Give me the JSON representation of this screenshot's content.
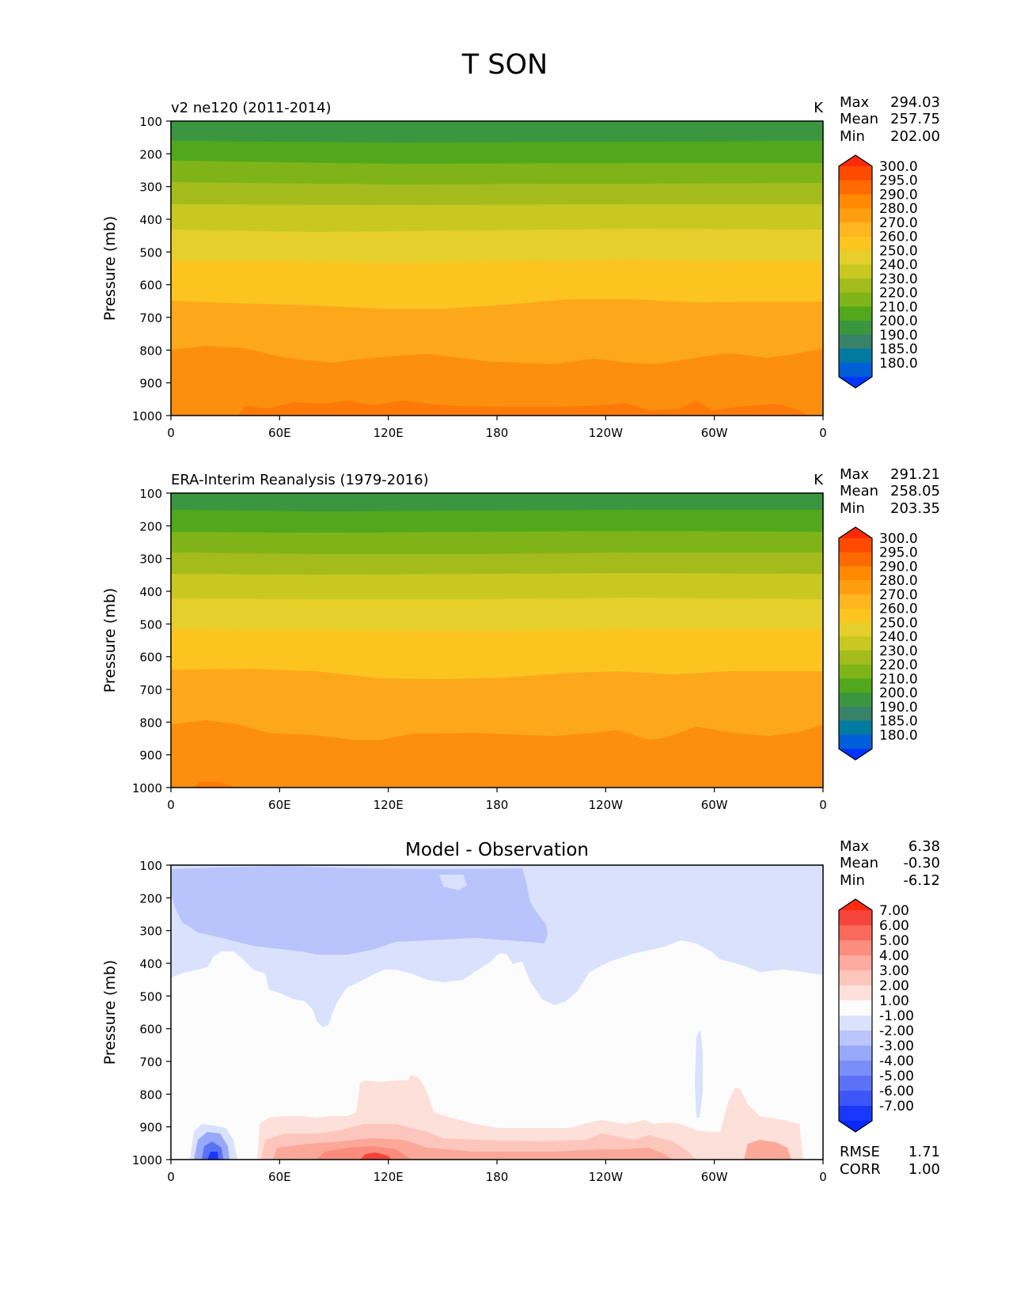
{
  "figure_title": "T SON",
  "chart_data": [
    {
      "type": "heatmap",
      "panel": "model",
      "title": "v2 ne120 (2011-2014)",
      "units": "K",
      "xlabel": "",
      "ylabel": "Pressure (mb)",
      "xticks": [
        "0",
        "60E",
        "120E",
        "180",
        "120W",
        "60W",
        "0"
      ],
      "yticks": [
        "100",
        "200",
        "300",
        "400",
        "500",
        "600",
        "700",
        "800",
        "900",
        "1000"
      ],
      "ylim": [
        1000,
        100
      ],
      "stats": {
        "max_label": "Max",
        "max": "294.03",
        "mean_label": "Mean",
        "mean": "257.75",
        "min_label": "Min",
        "min": "202.00"
      },
      "colorbar": {
        "labels": [
          "300.0",
          "295.0",
          "290.0",
          "280.0",
          "270.0",
          "260.0",
          "250.0",
          "240.0",
          "230.0",
          "220.0",
          "210.0",
          "200.0",
          "190.0",
          "185.0",
          "180.0"
        ],
        "colors": [
          "#ff2a0a",
          "#ff4a00",
          "#ff6a00",
          "#ff8a00",
          "#ff9f10",
          "#fdb520",
          "#fcc41f",
          "#e6cf2a",
          "#c8c820",
          "#a3bc1c",
          "#7fb418",
          "#52a81c",
          "#3b9640",
          "#378268",
          "#007ba0",
          "#005ed6",
          "#0035ff"
        ]
      },
      "levels": [
        {
          "p_top": 100,
          "p_bot": 150,
          "value": 205,
          "color": "#3b9640"
        },
        {
          "p_top": 150,
          "p_bot": 210,
          "value": 215,
          "color": "#52a81c"
        },
        {
          "p_top": 210,
          "p_bot": 270,
          "value": 225,
          "color": "#7fb418"
        },
        {
          "p_top": 270,
          "p_bot": 340,
          "value": 235,
          "color": "#a3bc1c"
        },
        {
          "p_top": 340,
          "p_bot": 420,
          "value": 245,
          "color": "#c8c820"
        },
        {
          "p_top": 420,
          "p_bot": 520,
          "value": 255,
          "color": "#e6cf2a"
        },
        {
          "p_top": 520,
          "p_bot": 650,
          "value": 265,
          "color": "#fcc41f"
        },
        {
          "p_top": 650,
          "p_bot": 810,
          "value": 275,
          "color": "#fda81a"
        },
        {
          "p_top": 810,
          "p_bot": 1000,
          "value": 285,
          "color": "#fd8f0e"
        }
      ]
    },
    {
      "type": "heatmap",
      "panel": "observation",
      "title": "ERA-Interim Reanalysis (1979-2016)",
      "units": "K",
      "xlabel": "",
      "ylabel": "Pressure (mb)",
      "xticks": [
        "0",
        "60E",
        "120E",
        "180",
        "120W",
        "60W",
        "0"
      ],
      "yticks": [
        "100",
        "200",
        "300",
        "400",
        "500",
        "600",
        "700",
        "800",
        "900",
        "1000"
      ],
      "ylim": [
        1000,
        100
      ],
      "stats": {
        "max_label": "Max",
        "max": "291.21",
        "mean_label": "Mean",
        "mean": "258.05",
        "min_label": "Min",
        "min": "203.35"
      },
      "colorbar": {
        "labels": [
          "300.0",
          "295.0",
          "290.0",
          "280.0",
          "270.0",
          "260.0",
          "250.0",
          "240.0",
          "230.0",
          "220.0",
          "210.0",
          "200.0",
          "190.0",
          "185.0",
          "180.0"
        ],
        "colors": [
          "#ff2a0a",
          "#ff4a00",
          "#ff6a00",
          "#ff8a00",
          "#ff9f10",
          "#fdb520",
          "#fcc41f",
          "#e6cf2a",
          "#c8c820",
          "#a3bc1c",
          "#7fb418",
          "#52a81c",
          "#3b9640",
          "#378268",
          "#007ba0",
          "#005ed6",
          "#0035ff"
        ]
      },
      "levels": [
        {
          "p_top": 100,
          "p_bot": 150,
          "value": 205,
          "color": "#3b9640"
        },
        {
          "p_top": 150,
          "p_bot": 215,
          "value": 215,
          "color": "#52a81c"
        },
        {
          "p_top": 215,
          "p_bot": 275,
          "value": 225,
          "color": "#7fb418"
        },
        {
          "p_top": 275,
          "p_bot": 345,
          "value": 235,
          "color": "#a3bc1c"
        },
        {
          "p_top": 345,
          "p_bot": 425,
          "value": 245,
          "color": "#c8c820"
        },
        {
          "p_top": 425,
          "p_bot": 525,
          "value": 255,
          "color": "#e6cf2a"
        },
        {
          "p_top": 525,
          "p_bot": 645,
          "value": 265,
          "color": "#fcc41f"
        },
        {
          "p_top": 645,
          "p_bot": 820,
          "value": 275,
          "color": "#fda81a"
        },
        {
          "p_top": 820,
          "p_bot": 1000,
          "value": 285,
          "color": "#fd8f0e"
        }
      ]
    },
    {
      "type": "heatmap",
      "panel": "difference",
      "title": "Model - Observation",
      "units": "",
      "xlabel": "",
      "ylabel": "Pressure (mb)",
      "xticks": [
        "0",
        "60E",
        "120E",
        "180",
        "120W",
        "60W",
        "0"
      ],
      "yticks": [
        "100",
        "200",
        "300",
        "400",
        "500",
        "600",
        "700",
        "800",
        "900",
        "1000"
      ],
      "ylim": [
        1000,
        100
      ],
      "stats": {
        "max_label": "Max",
        "max": "6.38",
        "mean_label": "Mean",
        "mean": "-0.30",
        "min_label": "Min",
        "min": "-6.12"
      },
      "metrics": {
        "rmse_label": "RMSE",
        "rmse": "1.71",
        "corr_label": "CORR",
        "corr": "1.00"
      },
      "colorbar": {
        "labels": [
          "7.00",
          "6.00",
          "5.00",
          "4.00",
          "3.00",
          "2.00",
          "1.00",
          "-1.00",
          "-2.00",
          "-3.00",
          "-4.00",
          "-5.00",
          "-6.00",
          "-7.00"
        ],
        "colors": [
          "#ff2a10",
          "#f5453a",
          "#fa6a5a",
          "#fc8c7e",
          "#fdaaa0",
          "#fdc6bd",
          "#fde0db",
          "#fcfcfc",
          "#dbe2fc",
          "#b9c5fb",
          "#98a9fa",
          "#7a8ef8",
          "#5b72f7",
          "#3c56f8",
          "#1838fc",
          "#0a28ff"
        ]
      },
      "regions": [
        {
          "value": -1.5,
          "color": "#dae1fc",
          "desc": "upper troposphere cool bias, 100-450 mb"
        },
        {
          "value": -2.5,
          "color": "#b8c4fb",
          "desc": "core cool bias 120-280 mb, 0-165W"
        },
        {
          "value": 1.5,
          "color": "#fde0da",
          "desc": "warm bias near surface 800-1000 mb"
        },
        {
          "value": 3.5,
          "color": "#fba898",
          "desc": "warm bias 950-1000 mb, 120E"
        },
        {
          "value": -4.0,
          "color": "#7b8ef8",
          "desc": "cold bias near surface ~20-30E"
        }
      ]
    }
  ]
}
